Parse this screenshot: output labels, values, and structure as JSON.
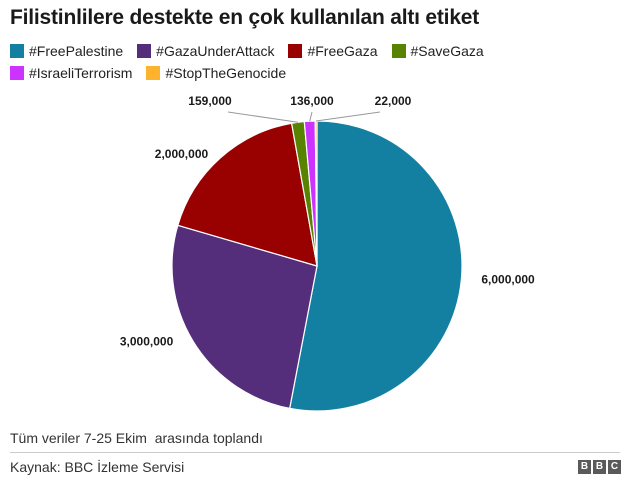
{
  "title": "Filistinlilere destekte en çok kullanılan altı etiket",
  "footnote": "Tüm veriler 7-25 Ekim  arasında toplandı",
  "source": "Kaynak: BBC İzleme Servisi",
  "logo": [
    "B",
    "B",
    "C"
  ],
  "chart_data": {
    "type": "pie",
    "title": "Filistinlilere destekte en çok kullanılan altı etiket",
    "legend_position": "top",
    "slices": [
      {
        "label": "#FreePalestine",
        "value": 6000000,
        "value_label": "6,000,000",
        "color": "#1380a1"
      },
      {
        "label": "#GazaUnderAttack",
        "value": 3000000,
        "value_label": "3,000,000",
        "color": "#542e7a"
      },
      {
        "label": "#FreeGaza",
        "value": 2000000,
        "value_label": "2,000,000",
        "color": "#990000"
      },
      {
        "label": "#SaveGaza",
        "value": 159000,
        "value_label": "159,000",
        "color": "#588300"
      },
      {
        "label": "#IsraeliTerrorism",
        "value": 136000,
        "value_label": "136,000",
        "color": "#cc33ff"
      },
      {
        "label": "#StopTheGenocide",
        "value": 22000,
        "value_label": "22,000",
        "color": "#fdb42c"
      }
    ]
  }
}
